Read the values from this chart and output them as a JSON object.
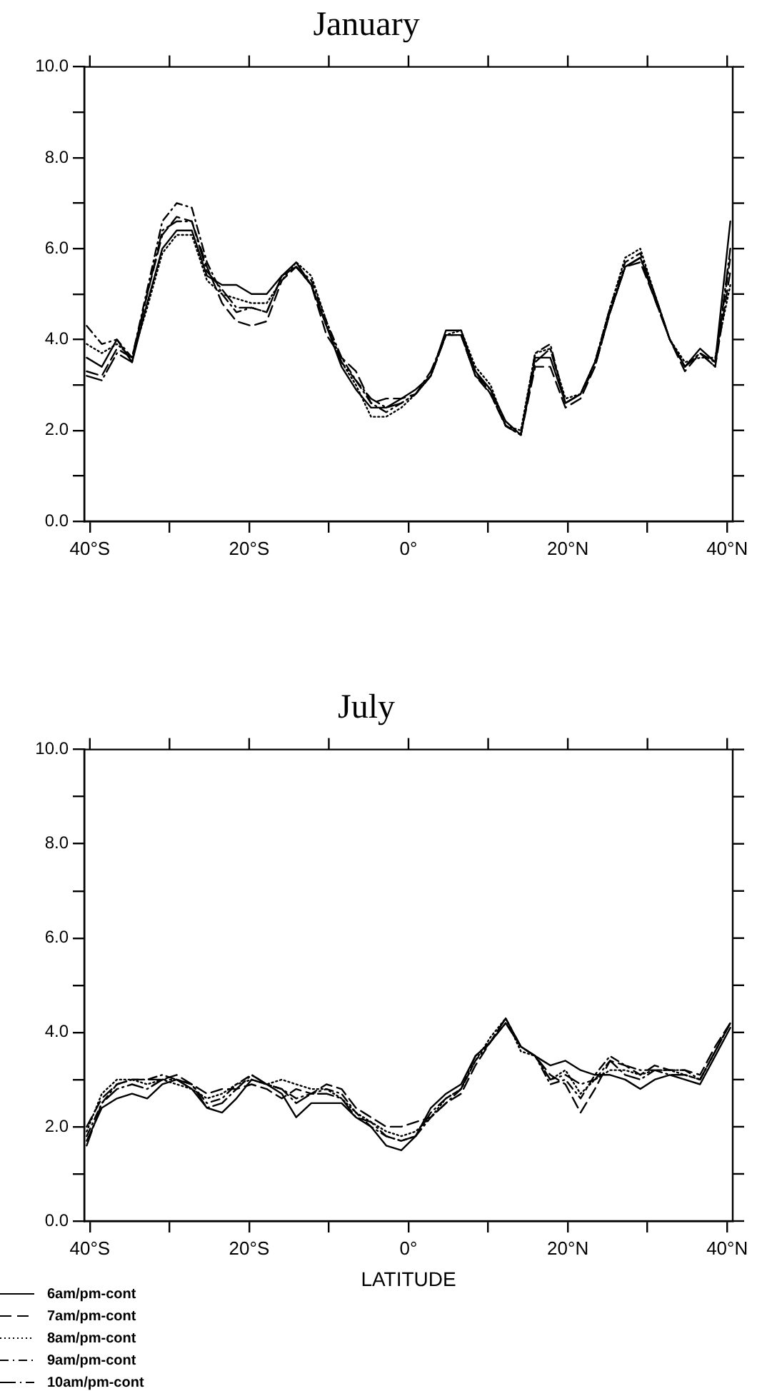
{
  "chart_data": [
    {
      "type": "line",
      "title": "January",
      "x": [
        -40.4,
        -38.5,
        -36.6,
        -34.7,
        -32.8,
        -30.9,
        -29.1,
        -27.2,
        -25.3,
        -23.4,
        -21.6,
        -19.7,
        -17.8,
        -15.9,
        -14.1,
        -12.2,
        -10.3,
        -8.4,
        -6.6,
        -4.7,
        -2.8,
        -0.9,
        0.9,
        2.8,
        4.7,
        6.6,
        8.4,
        10.3,
        12.2,
        14.1,
        15.9,
        17.8,
        19.7,
        21.6,
        23.4,
        25.3,
        27.2,
        29.1,
        30.9,
        32.8,
        34.7,
        36.6,
        38.5,
        40.4
      ],
      "xlim": [
        -40.7,
        40.7
      ],
      "xticks": [
        {
          "value": -40,
          "label": "40°S"
        },
        {
          "value": -30,
          "label": null
        },
        {
          "value": -20,
          "label": "20°S"
        },
        {
          "value": -10,
          "label": null
        },
        {
          "value": 0,
          "label": "0°"
        },
        {
          "value": 10,
          "label": null
        },
        {
          "value": 20,
          "label": "20°N"
        },
        {
          "value": 30,
          "label": null
        },
        {
          "value": 40,
          "label": "40°N"
        }
      ],
      "ylim": [
        0,
        10
      ],
      "yticks": [
        {
          "value": 0,
          "label": "0.0"
        },
        {
          "value": 1,
          "label": null
        },
        {
          "value": 2,
          "label": "2.0"
        },
        {
          "value": 3,
          "label": null
        },
        {
          "value": 4,
          "label": "4.0"
        },
        {
          "value": 5,
          "label": null
        },
        {
          "value": 6,
          "label": "6.0"
        },
        {
          "value": 7,
          "label": null
        },
        {
          "value": 8,
          "label": "8.0"
        },
        {
          "value": 9,
          "label": null
        },
        {
          "value": 10,
          "label": "10.0"
        }
      ],
      "marker": "none",
      "series": [
        {
          "color": "#000000",
          "line_style": "solid",
          "values": [
            3.6,
            3.4,
            4.0,
            3.5,
            4.8,
            6.0,
            6.4,
            6.4,
            5.4,
            5.2,
            5.2,
            5.0,
            5.0,
            5.4,
            5.7,
            5.2,
            4.3,
            3.4,
            2.9,
            2.5,
            2.5,
            2.7,
            2.9,
            3.2,
            4.2,
            4.2,
            3.3,
            2.9,
            2.2,
            1.9,
            3.6,
            3.6,
            2.6,
            2.8,
            3.5,
            4.6,
            5.6,
            5.8,
            5.0,
            4.0,
            3.4,
            3.8,
            3.5,
            6.6
          ]
        },
        {
          "color": "#000000",
          "line_style": "dashed",
          "values": [
            3.3,
            3.2,
            3.8,
            3.6,
            5.0,
            6.3,
            6.7,
            6.6,
            5.6,
            4.8,
            4.4,
            4.3,
            4.4,
            5.3,
            5.6,
            5.2,
            4.1,
            3.6,
            3.3,
            2.6,
            2.7,
            2.7,
            2.8,
            3.2,
            4.1,
            4.1,
            3.2,
            2.8,
            2.1,
            1.9,
            3.4,
            3.4,
            2.5,
            2.7,
            3.4,
            4.6,
            5.6,
            5.7,
            4.9,
            4.0,
            3.3,
            3.7,
            3.4,
            5.5
          ]
        },
        {
          "color": "#000000",
          "line_style": "dotted",
          "values": [
            3.9,
            3.7,
            3.9,
            3.6,
            4.7,
            5.9,
            6.3,
            6.3,
            5.3,
            5.0,
            4.9,
            4.8,
            4.8,
            5.3,
            5.7,
            5.4,
            4.4,
            3.5,
            3.0,
            2.3,
            2.3,
            2.5,
            2.8,
            3.2,
            4.1,
            4.2,
            3.4,
            3.0,
            2.1,
            2.0,
            3.7,
            3.8,
            2.7,
            2.8,
            3.5,
            4.7,
            5.8,
            6.0,
            5.0,
            4.0,
            3.5,
            3.6,
            3.6,
            5.2
          ]
        },
        {
          "color": "#000000",
          "line_style": "dashed",
          "values": [
            4.3,
            3.9,
            4.0,
            3.6,
            5.1,
            6.6,
            7.0,
            6.9,
            5.7,
            5.0,
            4.6,
            4.7,
            4.6,
            5.4,
            5.6,
            5.3,
            4.4,
            3.6,
            3.1,
            2.6,
            2.4,
            2.6,
            2.8,
            3.2,
            4.1,
            4.1,
            3.3,
            2.8,
            2.1,
            1.9,
            3.7,
            3.9,
            2.6,
            2.8,
            3.5,
            4.7,
            5.7,
            5.9,
            5.0,
            4.0,
            3.4,
            3.7,
            3.5,
            5.8
          ]
        },
        {
          "color": "#000000",
          "line_style": "dashed",
          "values": [
            3.2,
            3.1,
            3.7,
            3.5,
            5.0,
            6.4,
            6.6,
            6.6,
            5.5,
            5.1,
            4.7,
            4.7,
            4.6,
            5.4,
            5.6,
            5.2,
            4.3,
            3.5,
            3.1,
            2.7,
            2.5,
            2.6,
            2.8,
            3.3,
            4.1,
            4.1,
            3.2,
            2.9,
            2.1,
            1.9,
            3.5,
            3.8,
            2.6,
            2.8,
            3.4,
            4.6,
            5.6,
            5.8,
            4.9,
            4.0,
            3.4,
            3.7,
            3.4,
            6.0
          ]
        }
      ]
    },
    {
      "type": "line",
      "title": "July",
      "xlabel": "LATITUDE",
      "legend": "bottom left",
      "x": [
        -40.4,
        -38.5,
        -36.6,
        -34.7,
        -32.8,
        -30.9,
        -29.1,
        -27.2,
        -25.3,
        -23.4,
        -21.6,
        -19.7,
        -17.8,
        -15.9,
        -14.1,
        -12.2,
        -10.3,
        -8.4,
        -6.6,
        -4.7,
        -2.8,
        -0.9,
        0.9,
        2.8,
        4.7,
        6.6,
        8.4,
        10.3,
        12.2,
        14.1,
        15.9,
        17.8,
        19.7,
        21.6,
        23.4,
        25.3,
        27.2,
        29.1,
        30.9,
        32.8,
        34.7,
        36.6,
        38.5,
        40.4
      ],
      "xlim": [
        -40.7,
        40.7
      ],
      "xticks": [
        {
          "value": -40,
          "label": "40°S"
        },
        {
          "value": -30,
          "label": null
        },
        {
          "value": -20,
          "label": "20°S"
        },
        {
          "value": -10,
          "label": null
        },
        {
          "value": 0,
          "label": "0°"
        },
        {
          "value": 10,
          "label": null
        },
        {
          "value": 20,
          "label": "20°N"
        },
        {
          "value": 30,
          "label": null
        },
        {
          "value": 40,
          "label": "40°N"
        }
      ],
      "ylim": [
        0,
        10
      ],
      "yticks": [
        {
          "value": 0,
          "label": "0.0"
        },
        {
          "value": 1,
          "label": null
        },
        {
          "value": 2,
          "label": "2.0"
        },
        {
          "value": 3,
          "label": null
        },
        {
          "value": 4,
          "label": "4.0"
        },
        {
          "value": 5,
          "label": null
        },
        {
          "value": 6,
          "label": "6.0"
        },
        {
          "value": 7,
          "label": null
        },
        {
          "value": 8,
          "label": "8.0"
        },
        {
          "value": 9,
          "label": null
        },
        {
          "value": 10,
          "label": "10.0"
        }
      ],
      "marker": "none",
      "series": [
        {
          "name": "6am/pm-cont",
          "color": "#000000",
          "line_style": "solid",
          "values": [
            1.7,
            2.4,
            2.6,
            2.7,
            2.6,
            2.9,
            3.0,
            2.8,
            2.4,
            2.3,
            2.6,
            3.0,
            2.9,
            2.7,
            2.2,
            2.5,
            2.5,
            2.5,
            2.2,
            2.0,
            1.6,
            1.5,
            1.8,
            2.4,
            2.7,
            2.9,
            3.5,
            3.8,
            4.2,
            3.7,
            3.5,
            3.3,
            3.4,
            3.2,
            3.1,
            3.1,
            3.0,
            2.8,
            3.0,
            3.1,
            3.0,
            2.9,
            3.5,
            4.1
          ]
        },
        {
          "name": "7am/pm-cont",
          "color": "#000000",
          "line_style": "dashed",
          "values": [
            2.0,
            2.6,
            2.9,
            3.0,
            3.0,
            3.0,
            3.1,
            2.9,
            2.7,
            2.8,
            2.8,
            2.9,
            2.8,
            2.6,
            2.8,
            2.7,
            2.9,
            2.8,
            2.4,
            2.2,
            2.0,
            2.0,
            2.1,
            2.2,
            2.5,
            2.7,
            3.3,
            3.8,
            4.3,
            3.7,
            3.5,
            3.1,
            2.9,
            2.3,
            2.8,
            3.4,
            3.3,
            3.1,
            3.3,
            3.2,
            3.2,
            3.1,
            3.7,
            4.2
          ]
        },
        {
          "name": "8am/pm-cont",
          "color": "#000000",
          "line_style": "dotted",
          "values": [
            1.9,
            2.7,
            3.0,
            3.0,
            2.9,
            3.0,
            2.9,
            2.8,
            2.6,
            2.7,
            2.9,
            3.0,
            2.9,
            3.0,
            2.9,
            2.8,
            2.8,
            2.6,
            2.3,
            2.1,
            1.9,
            1.8,
            1.9,
            2.2,
            2.6,
            2.8,
            3.4,
            3.9,
            4.3,
            3.6,
            3.5,
            3.0,
            3.2,
            2.7,
            3.0,
            3.2,
            3.2,
            3.1,
            3.2,
            3.2,
            3.1,
            3.0,
            3.6,
            4.2
          ]
        },
        {
          "name": "9am/pm-cont",
          "color": "#000000",
          "line_style": "dashed",
          "values": [
            1.8,
            2.5,
            2.9,
            3.0,
            3.0,
            3.1,
            3.0,
            2.9,
            2.5,
            2.6,
            2.9,
            3.1,
            2.9,
            2.8,
            2.6,
            2.7,
            2.8,
            2.7,
            2.3,
            2.0,
            1.8,
            1.7,
            1.8,
            2.2,
            2.5,
            2.8,
            3.4,
            3.8,
            4.2,
            3.7,
            3.5,
            2.9,
            3.0,
            2.6,
            3.1,
            3.5,
            3.3,
            3.2,
            3.2,
            3.2,
            3.2,
            3.0,
            3.6,
            4.2
          ]
        },
        {
          "name": "10am/pm-cont",
          "color": "#000000",
          "line_style": "dashed",
          "values": [
            1.6,
            2.5,
            2.8,
            2.9,
            2.8,
            3.0,
            3.0,
            2.9,
            2.4,
            2.5,
            2.8,
            3.1,
            2.9,
            2.8,
            2.5,
            2.7,
            2.7,
            2.6,
            2.2,
            2.1,
            1.8,
            1.7,
            1.8,
            2.3,
            2.6,
            2.8,
            3.5,
            3.8,
            4.3,
            3.7,
            3.5,
            3.0,
            3.1,
            2.9,
            3.0,
            3.4,
            3.1,
            3.0,
            3.2,
            3.1,
            3.1,
            3.0,
            3.6,
            4.2
          ]
        }
      ]
    }
  ]
}
